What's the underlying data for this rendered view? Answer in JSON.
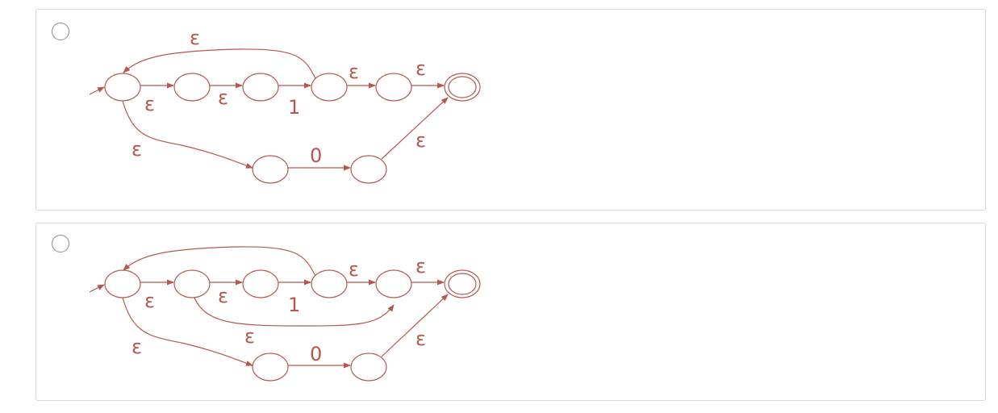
{
  "question": {
    "options": [
      {
        "id": "option-1",
        "selected": false,
        "labels": {
          "e_loop": "ε",
          "e1": "ε",
          "e2": "ε",
          "one": "1",
          "e3": "ε",
          "e4": "ε",
          "e_lower": "ε",
          "zero": "0",
          "e_final": "ε"
        }
      },
      {
        "id": "option-2",
        "selected": false,
        "labels": {
          "e1": "ε",
          "e2": "ε",
          "one": "1",
          "e3": "ε",
          "e4": "ε",
          "e_bypass": "ε",
          "e_lower": "ε",
          "zero": "0",
          "e_final": "ε"
        }
      }
    ]
  },
  "colors": {
    "diagram": "#b5574d",
    "border": "#d6d6d6",
    "radio": "#8a8a8a"
  }
}
